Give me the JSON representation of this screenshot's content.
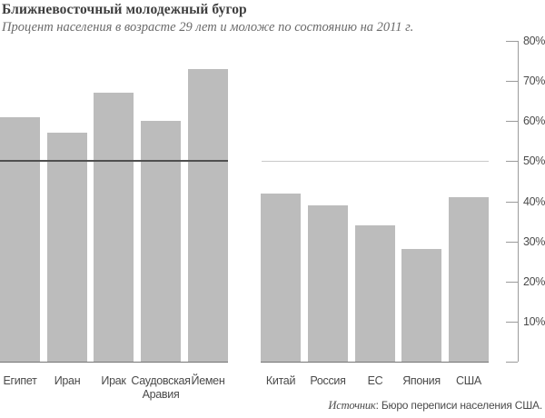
{
  "title": "Ближневосточный молодежный бугор",
  "subtitle": "Процент населения в возрасте 29 лет и моложе по состоянию на 2011 г.",
  "source": {
    "label": "Источник",
    "text": ": Бюро переписи населения США."
  },
  "colors": {
    "bar": "#bcbcbc",
    "axis": "#9b9b9b",
    "reference_dark": "#4f4f4f",
    "reference_light": "#c9c9c9",
    "baseline": "#747474",
    "title_text": "#3e3e3e",
    "label_text": "#4a4a4a"
  },
  "chart_data": {
    "type": "bar",
    "title": "Ближневосточный молодежный бугор",
    "subtitle": "Процент населения в возрасте 29 лет и моложе по состоянию на 2011 г.",
    "groups": [
      {
        "name": "middle-east",
        "categories": [
          "Египет",
          "Иран",
          "Ирак",
          "Саудовская Аравия",
          "Йемен"
        ],
        "values": [
          61,
          57,
          67,
          60,
          73
        ]
      },
      {
        "name": "comparison",
        "categories": [
          "Китай",
          "Россия",
          "ЕС",
          "Япония",
          "США"
        ],
        "values": [
          42,
          39,
          34,
          28,
          41
        ]
      }
    ],
    "ylabel": "",
    "ylim": [
      0,
      80
    ],
    "yticks": [
      80,
      70,
      60,
      50,
      40,
      30,
      20,
      10
    ],
    "ytick_labels": [
      "80%",
      "70%",
      "60%",
      "50%",
      "40%",
      "30%",
      "20%",
      "10%"
    ],
    "axis_position": "right",
    "reference_line_value": 50,
    "grid": "off",
    "legend": "none",
    "source": "Источник: Бюро переписи населения США."
  }
}
